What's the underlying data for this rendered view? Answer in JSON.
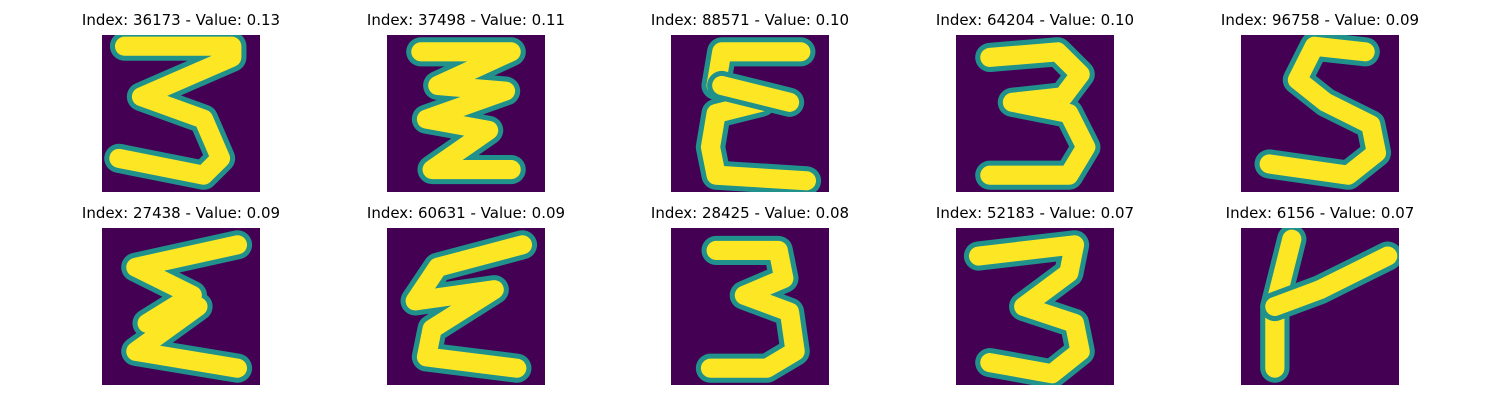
{
  "colors": {
    "background": "#440154",
    "stroke": "#fde725",
    "edge": "#21918c"
  },
  "panels": [
    {
      "title": "Index: 36173 - Value: 0.13",
      "glyph": "3"
    },
    {
      "title": "Index: 37498 - Value: 0.11",
      "glyph": "3"
    },
    {
      "title": "Index: 88571 - Value: 0.10",
      "glyph": "E"
    },
    {
      "title": "Index: 64204 - Value: 0.10",
      "glyph": "3"
    },
    {
      "title": "Index: 96758 - Value: 0.09",
      "glyph": "S"
    },
    {
      "title": "Index: 27438 - Value: 0.09",
      "glyph": "3"
    },
    {
      "title": "Index: 60631 - Value: 0.09",
      "glyph": "3"
    },
    {
      "title": "Index: 28425 - Value: 0.08",
      "glyph": "3"
    },
    {
      "title": "Index: 52183 - Value: 0.07",
      "glyph": "3"
    },
    {
      "title": "Index: 6156 - Value: 0.07",
      "glyph": "4"
    }
  ]
}
